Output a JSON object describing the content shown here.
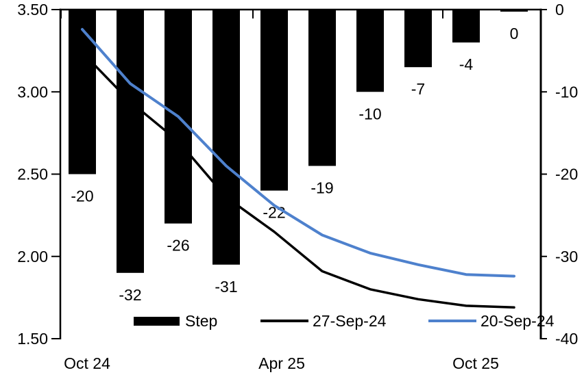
{
  "legend": {
    "items": [
      {
        "label": "Step",
        "swatch": "bar-swatch",
        "color": "#000000"
      },
      {
        "label": "27-Sep-24",
        "swatch": "line-swatch",
        "color": "#000000"
      },
      {
        "label": "20-Sep-24",
        "swatch": "line-swatch",
        "color": "#4E81CD"
      }
    ]
  },
  "chart_data": {
    "type": "combo",
    "title": "",
    "x_tick_labels": [
      "Oct 24",
      "Apr 25",
      "Oct 25"
    ],
    "left_axis": {
      "min": 1.5,
      "max": 3.5,
      "tick_labels": [
        "3.50",
        "3.00",
        "2.50",
        "2.00",
        "1.50"
      ],
      "tick_values": [
        3.5,
        3.0,
        2.5,
        2.0,
        1.5
      ]
    },
    "right_axis": {
      "min": -40,
      "max": 0,
      "tick_labels": [
        "0",
        "-10",
        "-20",
        "-30",
        "-40"
      ],
      "tick_values": [
        0,
        -10,
        -20,
        -30,
        -40
      ]
    },
    "grid": false,
    "legend_position": "bottom",
    "series": [
      {
        "name": "Step",
        "type": "bar",
        "axis": "right",
        "color": "#000000",
        "values": [
          -20,
          -32,
          -26,
          -31,
          -22,
          -19,
          -10,
          -7,
          -4,
          0
        ],
        "data_labels": [
          "-20",
          "-32",
          "-26",
          "-31",
          "-22",
          "-19",
          "-10",
          "-7",
          "-4",
          "0"
        ]
      },
      {
        "name": "27-Sep-24",
        "type": "line",
        "axis": "left",
        "color": "#000000",
        "values": [
          3.24,
          2.94,
          2.7,
          2.36,
          2.15,
          1.91,
          1.8,
          1.74,
          1.7,
          1.69
        ]
      },
      {
        "name": "20-Sep-24",
        "type": "line",
        "axis": "left",
        "color": "#4E81CD",
        "values": [
          3.38,
          3.05,
          2.85,
          2.55,
          2.31,
          2.13,
          2.02,
          1.95,
          1.89,
          1.88
        ]
      }
    ]
  }
}
